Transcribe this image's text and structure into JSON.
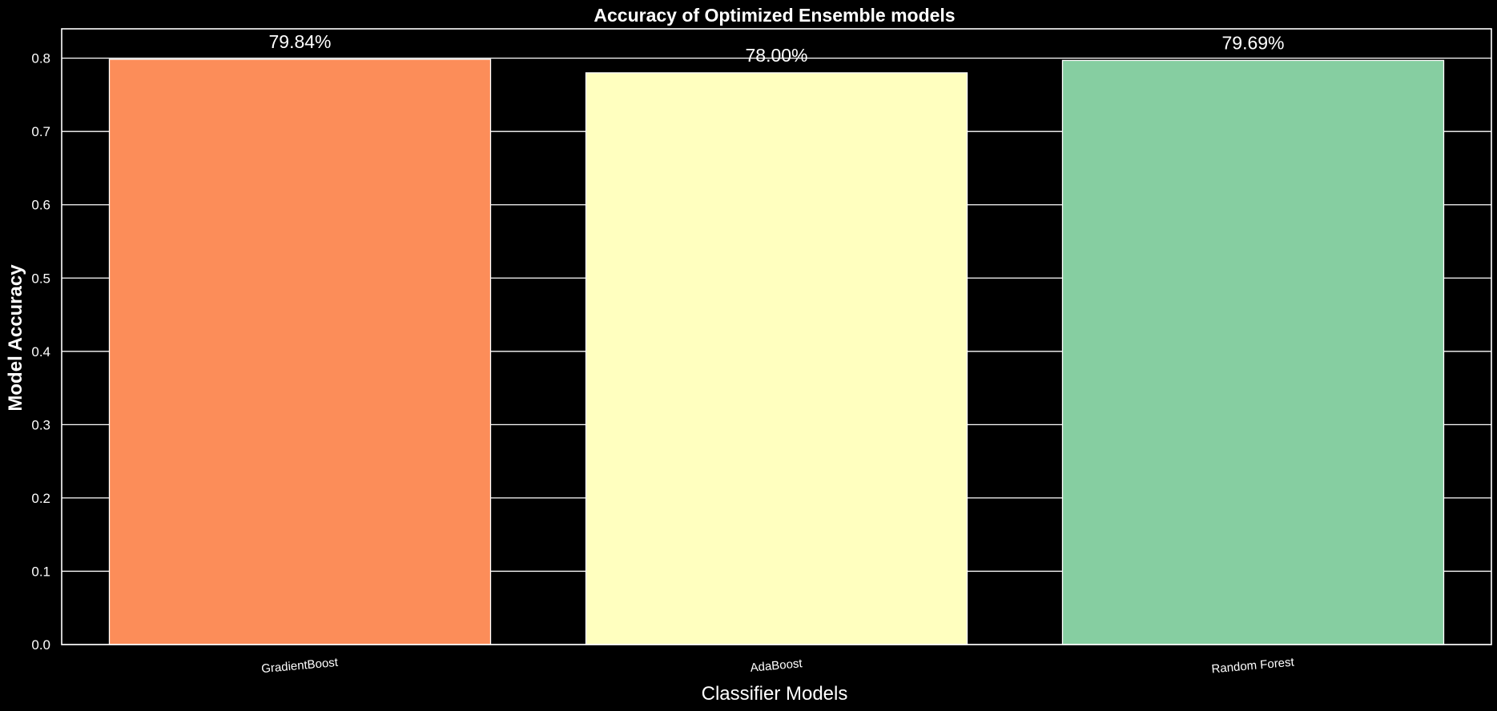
{
  "chart_data": {
    "type": "bar",
    "title": "Accuracy of Optimized Ensemble models",
    "xlabel": "Classifier Models",
    "ylabel": "Model Accuracy",
    "categories": [
      "GradientBoost",
      "AdaBoost",
      "Random Forest"
    ],
    "values": [
      0.7984,
      0.78,
      0.7969
    ],
    "value_labels": [
      "79.84%",
      "78.00%",
      "79.69%"
    ],
    "colors": [
      "#fc8d59",
      "#ffffbf",
      "#86ceA1"
    ],
    "ylim": [
      0,
      0.84
    ],
    "yticks": [
      0.0,
      0.1,
      0.2,
      0.3,
      0.4,
      0.5,
      0.6,
      0.7,
      0.8
    ],
    "ytick_labels": [
      "0.0",
      "0.1",
      "0.2",
      "0.3",
      "0.4",
      "0.5",
      "0.6",
      "0.7",
      "0.8"
    ],
    "grid": "horizontal",
    "background": "#000000",
    "legend": "none"
  }
}
